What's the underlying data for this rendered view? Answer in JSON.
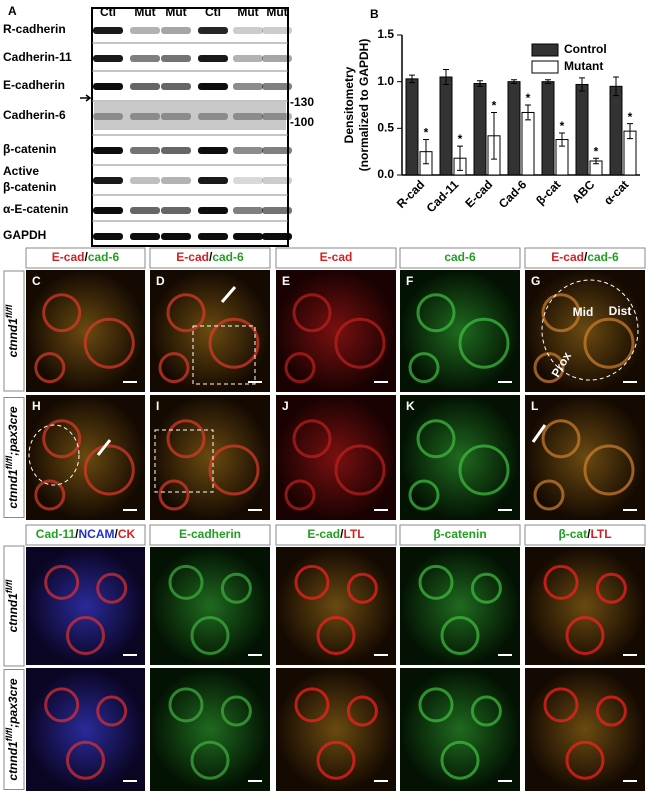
{
  "panel_a": {
    "label": "A",
    "lanes": [
      "Ctl",
      "Mut",
      "Mut",
      "Ctl",
      "Mut",
      "Mut"
    ],
    "rows": [
      [
        "R-cadherin"
      ],
      [
        "Cadherin-11"
      ],
      [
        "E-cadherin"
      ],
      [
        "Cadherin-6"
      ],
      [
        "β-catenin"
      ],
      [
        "Active",
        "β-catenin"
      ],
      [
        "α-E-catenin"
      ],
      [
        "GAPDH"
      ]
    ],
    "markers": [
      "-130",
      "-100"
    ]
  },
  "chart_data": {
    "type": "bar",
    "label": "B",
    "y_label": [
      "Densitometry",
      "(normalized to GAPDH)"
    ],
    "categories": [
      "R-cad",
      "Cad-11",
      "E-cad",
      "Cad-6",
      "β-cat",
      "ABC",
      "α-cat"
    ],
    "series": [
      {
        "name": "Control",
        "color": "#333333",
        "values": [
          1.03,
          1.05,
          0.98,
          1.0,
          1.0,
          0.97,
          0.95
        ],
        "errors": [
          0.04,
          0.08,
          0.03,
          0.02,
          0.02,
          0.07,
          0.1
        ]
      },
      {
        "name": "Mutant",
        "color": "#ffffff",
        "values": [
          0.25,
          0.18,
          0.42,
          0.67,
          0.38,
          0.15,
          0.47
        ],
        "errors": [
          0.13,
          0.13,
          0.25,
          0.08,
          0.07,
          0.03,
          0.08
        ]
      }
    ],
    "significance": [
      "*",
      "*",
      "*",
      "*",
      "*",
      "*",
      "*"
    ],
    "ylim": [
      0,
      1.5
    ],
    "yticks": [
      {
        "value": 0,
        "label": "0.0"
      },
      {
        "value": 0.5,
        "label": "0.5"
      },
      {
        "value": 1,
        "label": "1.0"
      },
      {
        "value": 1.5,
        "label": "1.5"
      }
    ],
    "legend": "top-right"
  },
  "images_top": {
    "headers": [
      [
        [
          "E-cad",
          "#d42020"
        ],
        [
          "/",
          "#000000"
        ],
        [
          "cad-6",
          "#20a020"
        ]
      ],
      [
        [
          "E-cad",
          "#d42020"
        ],
        [
          "/",
          "#000000"
        ],
        [
          "cad-6",
          "#20a020"
        ]
      ],
      [
        [
          "E-cad",
          "#d42020"
        ]
      ],
      [
        [
          "cad-6",
          "#20a020"
        ]
      ],
      [
        [
          "E-cad",
          "#d42020"
        ],
        [
          "/",
          "#000000"
        ],
        [
          "cad-6",
          "#20a020"
        ]
      ]
    ],
    "row_labels": [
      [
        "ctnnd1",
        "fl/fl",
        ""
      ],
      [
        "ctnnd1",
        "fl/fl",
        ";pax3cre"
      ]
    ],
    "panel_letters": [
      [
        "C",
        "D",
        "E",
        "F",
        "G"
      ],
      [
        "H",
        "I",
        "J",
        "K",
        "L"
      ]
    ],
    "annotations": [
      "Mid",
      "Dist",
      "Prox"
    ]
  },
  "images_bottom": {
    "headers": [
      [
        [
          "Cad-11",
          "#20a020"
        ],
        [
          "/",
          "#000000"
        ],
        [
          "NCAM",
          "#2030d0"
        ],
        [
          "/",
          "#000000"
        ],
        [
          "CK",
          "#d42020"
        ]
      ],
      [
        [
          "E-cadherin",
          "#20a020"
        ]
      ],
      [
        [
          "E-cad",
          "#20a020"
        ],
        [
          "/",
          "#000000"
        ],
        [
          "LTL",
          "#d42020"
        ]
      ],
      [
        [
          "β-catenin",
          "#20a020"
        ]
      ],
      [
        [
          "β-cat",
          "#20a020"
        ],
        [
          "/",
          "#000000"
        ],
        [
          "LTL",
          "#d42020"
        ]
      ]
    ],
    "row_labels": [
      [
        "ctnnd1",
        "fl/fl",
        ""
      ],
      [
        "ctnnd1",
        "fl/fl",
        ";pax3cre"
      ]
    ]
  }
}
